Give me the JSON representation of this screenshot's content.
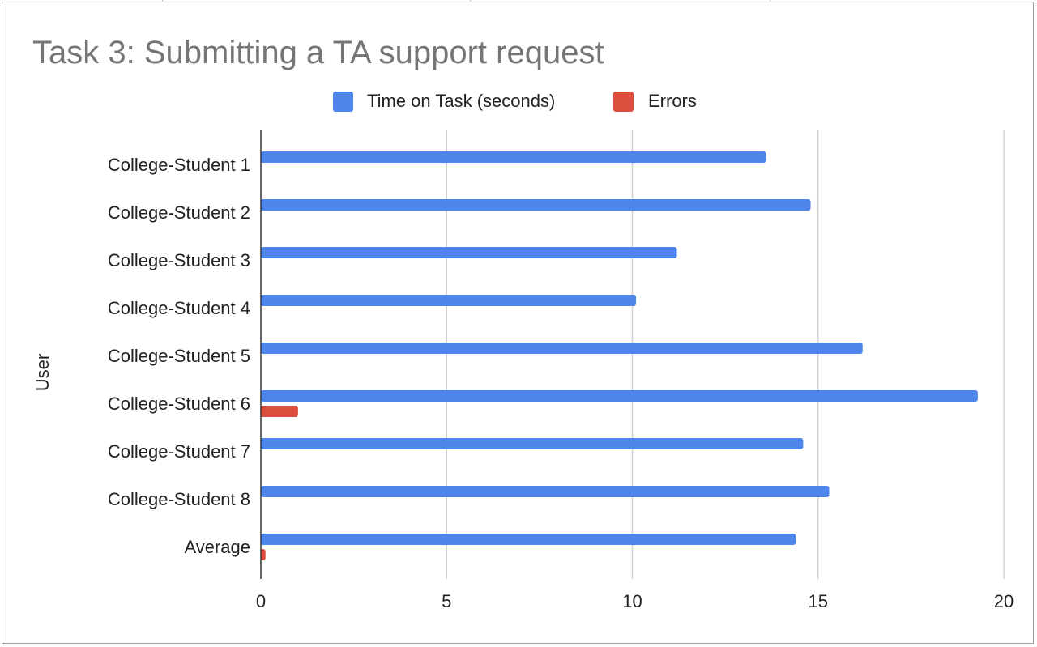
{
  "chart_data": {
    "type": "bar",
    "orientation": "horizontal",
    "title": "Task 3: Submitting a TA support request",
    "ylabel": "User",
    "xlabel": "",
    "categories": [
      "College-Student 1",
      "College-Student 2",
      "College-Student 3",
      "College-Student 4",
      "College-Student 5",
      "College-Student 6",
      "College-Student 7",
      "College-Student 8",
      "Average"
    ],
    "series": [
      {
        "name": "Time on Task (seconds)",
        "color": "#4f86ec",
        "values": [
          13.6,
          14.8,
          11.2,
          10.1,
          16.2,
          19.3,
          14.6,
          15.3,
          14.4
        ]
      },
      {
        "name": "Errors",
        "color": "#db4e3e",
        "values": [
          0,
          0,
          0,
          0,
          0,
          1,
          0,
          0,
          0.125
        ]
      }
    ],
    "xlim": [
      0,
      20
    ],
    "xticks": [
      0,
      5,
      10,
      15,
      20
    ],
    "grid": true,
    "legend_position": "top"
  }
}
